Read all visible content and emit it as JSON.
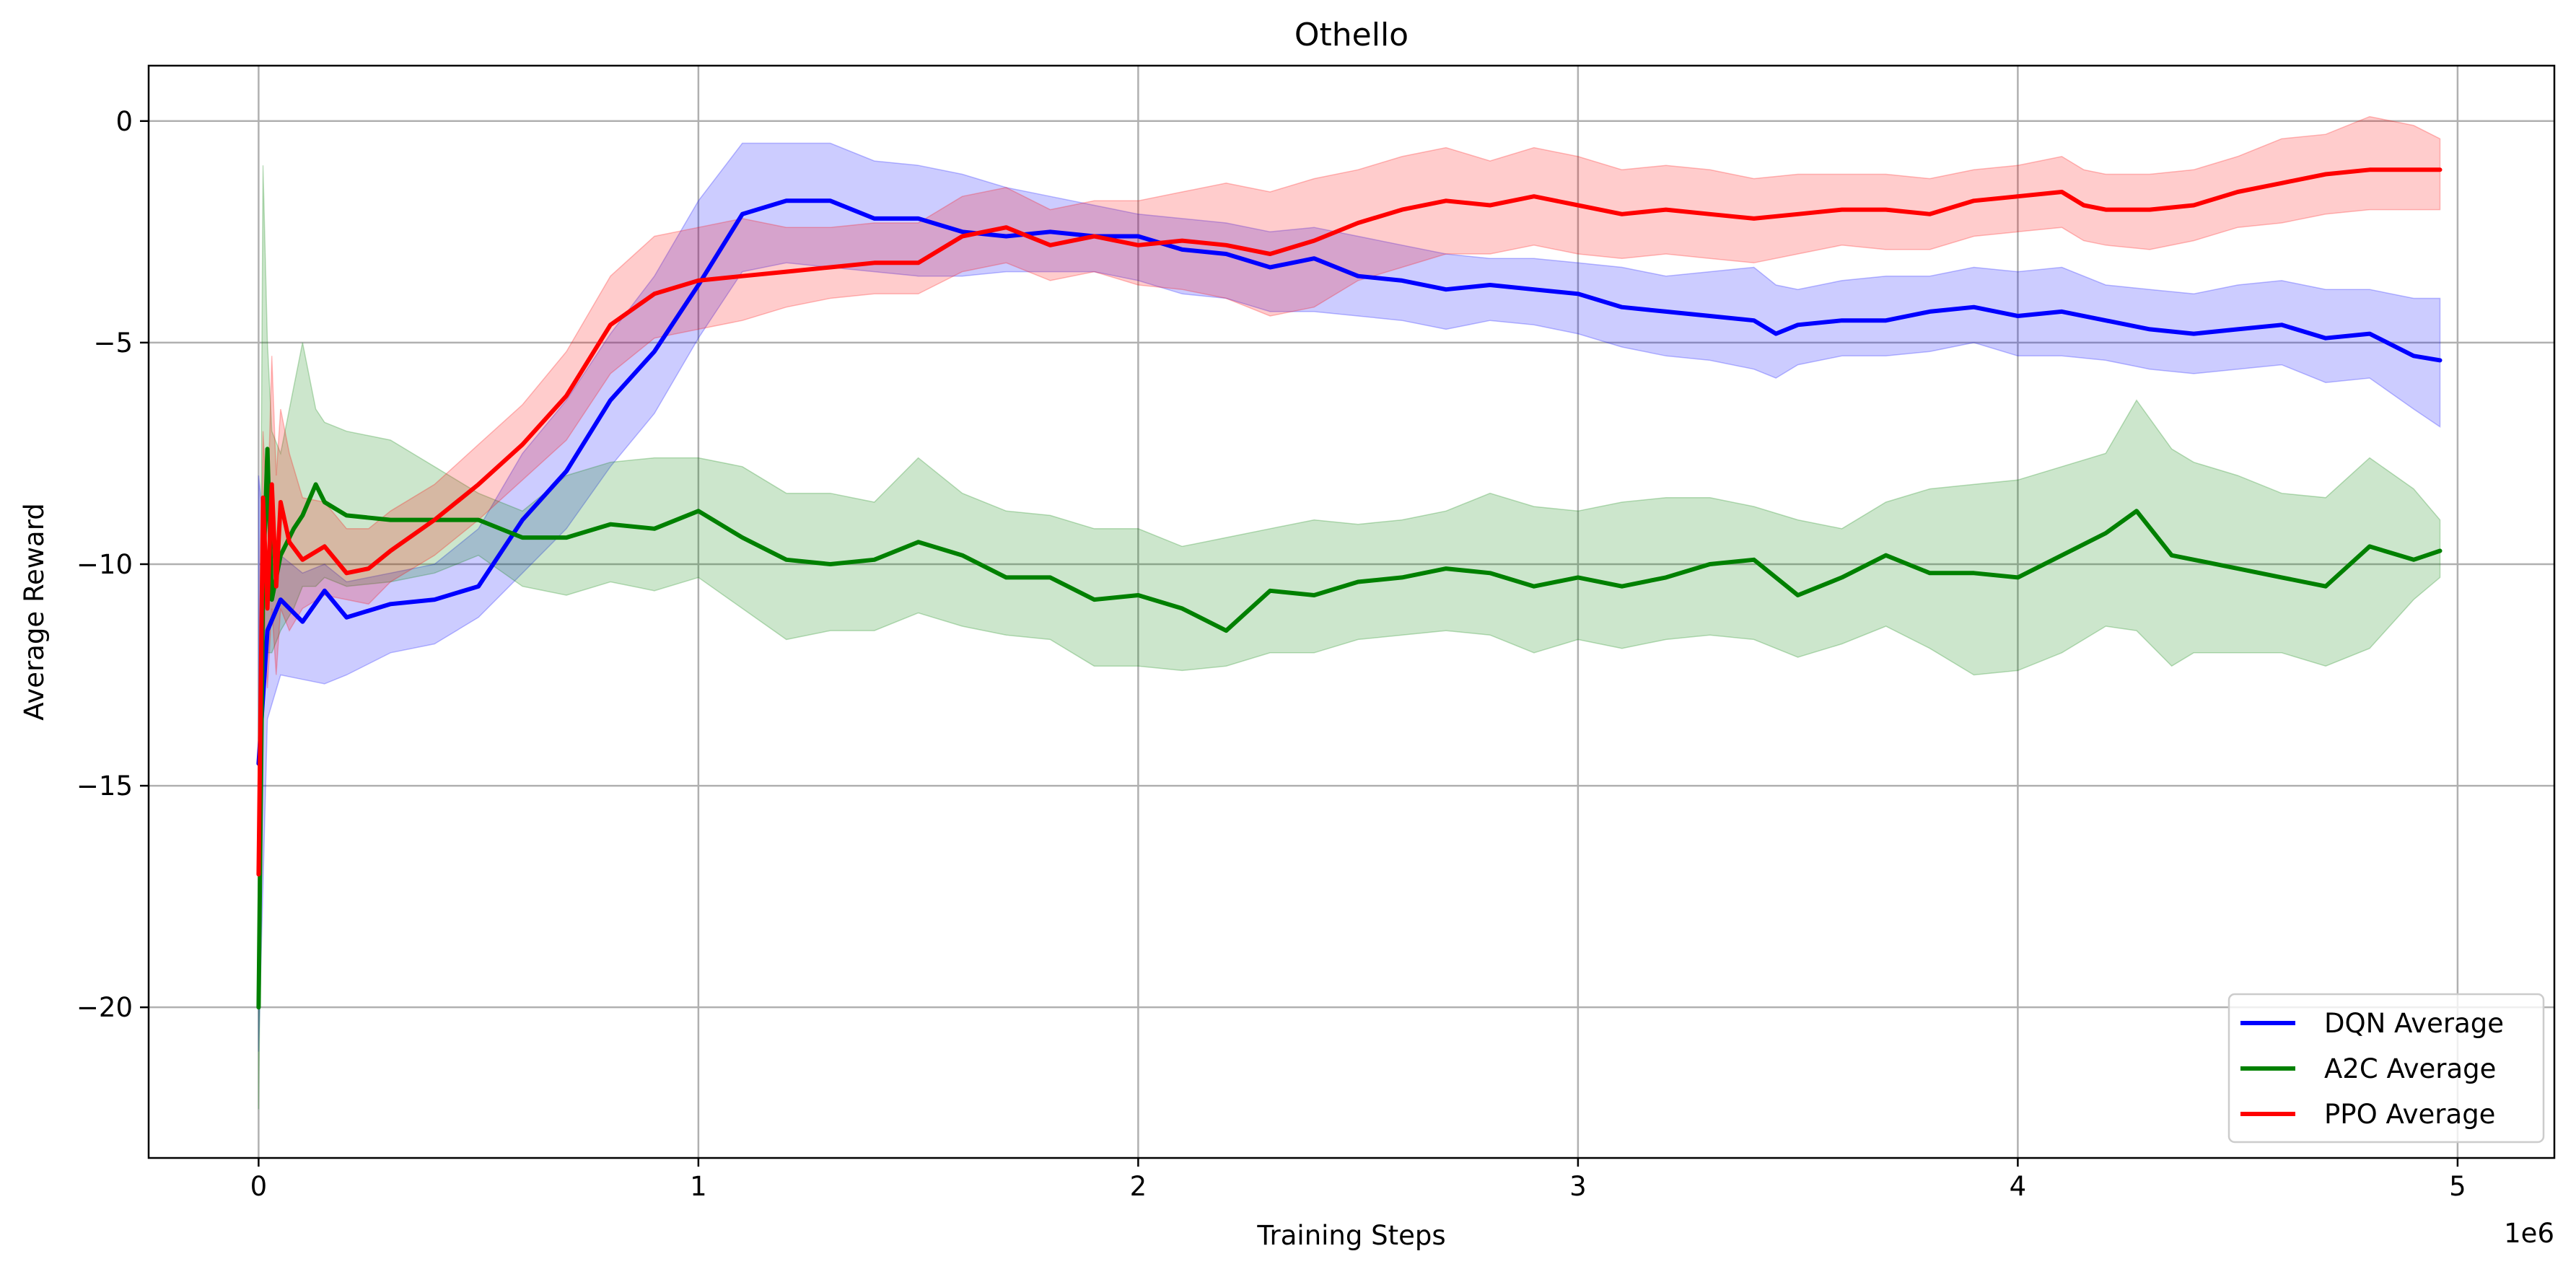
{
  "chart_data": {
    "type": "line",
    "title": "Othello",
    "xlabel": "Training Steps",
    "ylabel": "Average Reward",
    "x_offset_label": "1e6",
    "xlim": [
      -0.25,
      5.22
    ],
    "ylim": [
      -23.4,
      1.25
    ],
    "xticks": [
      0,
      1,
      2,
      3,
      4,
      5
    ],
    "xtick_labels": [
      "0",
      "1",
      "2",
      "3",
      "4",
      "5"
    ],
    "yticks": [
      0,
      -5,
      -10,
      -15,
      -20
    ],
    "ytick_labels": [
      "0",
      "−5",
      "−10",
      "−15",
      "−20"
    ],
    "grid": true,
    "legend_position": "lower-right",
    "series": [
      {
        "name": "DQN Average",
        "color": "#0000ff",
        "x": [
          0.0,
          0.02,
          0.05,
          0.1,
          0.15,
          0.2,
          0.3,
          0.4,
          0.5,
          0.6,
          0.7,
          0.8,
          0.9,
          1.0,
          1.1,
          1.2,
          1.3,
          1.4,
          1.5,
          1.6,
          1.7,
          1.8,
          1.9,
          2.0,
          2.1,
          2.2,
          2.3,
          2.4,
          2.5,
          2.6,
          2.7,
          2.8,
          2.9,
          3.0,
          3.1,
          3.2,
          3.3,
          3.4,
          3.45,
          3.5,
          3.6,
          3.7,
          3.8,
          3.9,
          4.0,
          4.1,
          4.2,
          4.3,
          4.4,
          4.5,
          4.6,
          4.7,
          4.8,
          4.9,
          4.96
        ],
        "y": [
          -14.5,
          -11.5,
          -10.8,
          -11.3,
          -10.6,
          -11.2,
          -10.9,
          -10.8,
          -10.5,
          -9.0,
          -7.9,
          -6.3,
          -5.2,
          -3.7,
          -2.1,
          -1.8,
          -1.8,
          -2.2,
          -2.2,
          -2.5,
          -2.6,
          -2.5,
          -2.6,
          -2.6,
          -2.9,
          -3.0,
          -3.3,
          -3.1,
          -3.5,
          -3.6,
          -3.8,
          -3.7,
          -3.8,
          -3.9,
          -4.2,
          -4.3,
          -4.4,
          -4.5,
          -4.8,
          -4.6,
          -4.5,
          -4.5,
          -4.3,
          -4.2,
          -4.4,
          -4.3,
          -4.5,
          -4.7,
          -4.8,
          -4.7,
          -4.6,
          -4.9,
          -4.8,
          -5.3,
          -5.4
        ],
        "band_upper": [
          -8.0,
          -10.0,
          -9.8,
          -10.2,
          -10.0,
          -10.4,
          -10.2,
          -10.0,
          -9.2,
          -7.5,
          -6.3,
          -4.8,
          -3.5,
          -1.8,
          -0.5,
          -0.5,
          -0.5,
          -0.9,
          -1.0,
          -1.2,
          -1.5,
          -1.7,
          -1.9,
          -2.1,
          -2.2,
          -2.3,
          -2.5,
          -2.4,
          -2.6,
          -2.8,
          -3.0,
          -3.1,
          -3.1,
          -3.2,
          -3.3,
          -3.5,
          -3.4,
          -3.3,
          -3.7,
          -3.8,
          -3.6,
          -3.5,
          -3.5,
          -3.3,
          -3.4,
          -3.3,
          -3.7,
          -3.8,
          -3.9,
          -3.7,
          -3.6,
          -3.8,
          -3.8,
          -4.0,
          -4.0
        ],
        "band_lower": [
          -21.0,
          -13.5,
          -12.5,
          -12.6,
          -12.7,
          -12.5,
          -12.0,
          -11.8,
          -11.2,
          -10.2,
          -9.2,
          -7.8,
          -6.6,
          -4.9,
          -3.4,
          -3.2,
          -3.3,
          -3.4,
          -3.5,
          -3.5,
          -3.4,
          -3.4,
          -3.4,
          -3.6,
          -3.9,
          -4.0,
          -4.3,
          -4.3,
          -4.4,
          -4.5,
          -4.7,
          -4.5,
          -4.6,
          -4.8,
          -5.1,
          -5.3,
          -5.4,
          -5.6,
          -5.8,
          -5.5,
          -5.3,
          -5.3,
          -5.2,
          -5.0,
          -5.3,
          -5.3,
          -5.4,
          -5.6,
          -5.7,
          -5.6,
          -5.5,
          -5.9,
          -5.8,
          -6.5,
          -6.9
        ]
      },
      {
        "name": "A2C Average",
        "color": "#008000",
        "x": [
          0.0,
          0.01,
          0.02,
          0.03,
          0.05,
          0.08,
          0.1,
          0.13,
          0.15,
          0.2,
          0.3,
          0.4,
          0.5,
          0.6,
          0.7,
          0.8,
          0.9,
          1.0,
          1.1,
          1.2,
          1.3,
          1.4,
          1.5,
          1.6,
          1.7,
          1.8,
          1.9,
          2.0,
          2.1,
          2.2,
          2.3,
          2.4,
          2.5,
          2.6,
          2.7,
          2.8,
          2.9,
          3.0,
          3.1,
          3.2,
          3.3,
          3.4,
          3.5,
          3.6,
          3.7,
          3.8,
          3.9,
          4.0,
          4.1,
          4.2,
          4.27,
          4.35,
          4.4,
          4.5,
          4.6,
          4.7,
          4.8,
          4.9,
          4.96
        ],
        "y": [
          -20.0,
          -10.5,
          -7.4,
          -10.8,
          -9.8,
          -9.2,
          -8.9,
          -8.2,
          -8.6,
          -8.9,
          -9.0,
          -9.0,
          -9.0,
          -9.4,
          -9.4,
          -9.1,
          -9.2,
          -8.8,
          -9.4,
          -9.9,
          -10.0,
          -9.9,
          -9.5,
          -9.8,
          -10.3,
          -10.3,
          -10.8,
          -10.7,
          -11.0,
          -11.5,
          -10.6,
          -10.7,
          -10.4,
          -10.3,
          -10.1,
          -10.2,
          -10.5,
          -10.3,
          -10.5,
          -10.3,
          -10.0,
          -9.9,
          -10.7,
          -10.3,
          -9.8,
          -10.2,
          -10.2,
          -10.3,
          -9.8,
          -9.3,
          -8.8,
          -9.8,
          -9.9,
          -10.1,
          -10.3,
          -10.5,
          -9.6,
          -9.9,
          -9.7
        ],
        "band_upper": [
          -17.5,
          -1.0,
          -5.0,
          -7.0,
          -7.5,
          -6.0,
          -5.0,
          -6.5,
          -6.8,
          -7.0,
          -7.2,
          -7.8,
          -8.4,
          -8.8,
          -8.0,
          -7.7,
          -7.6,
          -7.6,
          -7.8,
          -8.4,
          -8.4,
          -8.6,
          -7.6,
          -8.4,
          -8.8,
          -8.9,
          -9.2,
          -9.2,
          -9.6,
          -9.4,
          -9.2,
          -9.0,
          -9.1,
          -9.0,
          -8.8,
          -8.4,
          -8.7,
          -8.8,
          -8.6,
          -8.5,
          -8.5,
          -8.7,
          -9.0,
          -9.2,
          -8.6,
          -8.3,
          -8.2,
          -8.1,
          -7.8,
          -7.5,
          -6.3,
          -7.4,
          -7.7,
          -8.0,
          -8.4,
          -8.5,
          -7.6,
          -8.3,
          -9.0
        ],
        "band_lower": [
          -22.3,
          -13.5,
          -12.0,
          -12.0,
          -11.5,
          -11.0,
          -10.5,
          -10.5,
          -10.3,
          -10.5,
          -10.4,
          -10.2,
          -9.8,
          -10.5,
          -10.7,
          -10.4,
          -10.6,
          -10.3,
          -11.0,
          -11.7,
          -11.5,
          -11.5,
          -11.1,
          -11.4,
          -11.6,
          -11.7,
          -12.3,
          -12.3,
          -12.4,
          -12.3,
          -12.0,
          -12.0,
          -11.7,
          -11.6,
          -11.5,
          -11.6,
          -12.0,
          -11.7,
          -11.9,
          -11.7,
          -11.6,
          -11.7,
          -12.1,
          -11.8,
          -11.4,
          -11.9,
          -12.5,
          -12.4,
          -12.0,
          -11.4,
          -11.5,
          -12.3,
          -12.0,
          -12.0,
          -12.0,
          -12.3,
          -11.9,
          -10.8,
          -10.3
        ]
      },
      {
        "name": "PPO Average",
        "color": "#ff0000",
        "x": [
          0.0,
          0.01,
          0.02,
          0.03,
          0.04,
          0.05,
          0.07,
          0.1,
          0.15,
          0.2,
          0.25,
          0.3,
          0.4,
          0.5,
          0.6,
          0.7,
          0.8,
          0.9,
          1.0,
          1.1,
          1.2,
          1.3,
          1.4,
          1.5,
          1.6,
          1.7,
          1.8,
          1.9,
          2.0,
          2.1,
          2.2,
          2.3,
          2.4,
          2.5,
          2.6,
          2.7,
          2.8,
          2.9,
          3.0,
          3.1,
          3.2,
          3.3,
          3.4,
          3.5,
          3.6,
          3.7,
          3.8,
          3.9,
          4.0,
          4.1,
          4.15,
          4.2,
          4.3,
          4.4,
          4.5,
          4.6,
          4.7,
          4.8,
          4.9,
          4.96
        ],
        "y": [
          -17.0,
          -8.5,
          -11.0,
          -8.2,
          -10.5,
          -8.6,
          -9.5,
          -9.9,
          -9.6,
          -10.2,
          -10.1,
          -9.7,
          -9.0,
          -8.2,
          -7.3,
          -6.2,
          -4.6,
          -3.9,
          -3.6,
          -3.5,
          -3.4,
          -3.3,
          -3.2,
          -3.2,
          -2.6,
          -2.4,
          -2.8,
          -2.6,
          -2.8,
          -2.7,
          -2.8,
          -3.0,
          -2.7,
          -2.3,
          -2.0,
          -1.8,
          -1.9,
          -1.7,
          -1.9,
          -2.1,
          -2.0,
          -2.1,
          -2.2,
          -2.1,
          -2.0,
          -2.0,
          -2.1,
          -1.8,
          -1.7,
          -1.6,
          -1.9,
          -2.0,
          -2.0,
          -1.9,
          -1.6,
          -1.4,
          -1.2,
          -1.1,
          -1.1,
          -1.1
        ],
        "band_upper": [
          -14.5,
          -7.0,
          -9.0,
          -5.3,
          -8.0,
          -6.5,
          -7.5,
          -8.5,
          -8.6,
          -9.2,
          -9.2,
          -8.8,
          -8.2,
          -7.3,
          -6.4,
          -5.2,
          -3.5,
          -2.6,
          -2.4,
          -2.2,
          -2.4,
          -2.4,
          -2.3,
          -2.3,
          -1.7,
          -1.5,
          -2.0,
          -1.8,
          -1.8,
          -1.6,
          -1.4,
          -1.6,
          -1.3,
          -1.1,
          -0.8,
          -0.6,
          -0.9,
          -0.6,
          -0.8,
          -1.1,
          -1.0,
          -1.1,
          -1.3,
          -1.2,
          -1.2,
          -1.2,
          -1.3,
          -1.1,
          -1.0,
          -0.8,
          -1.1,
          -1.2,
          -1.2,
          -1.1,
          -0.8,
          -0.4,
          -0.3,
          0.1,
          -0.1,
          -0.4
        ],
        "band_lower": [
          -19.0,
          -10.0,
          -12.8,
          -11.0,
          -12.5,
          -11.0,
          -11.5,
          -11.0,
          -10.7,
          -10.8,
          -10.9,
          -10.4,
          -9.8,
          -9.0,
          -8.1,
          -7.2,
          -5.7,
          -4.9,
          -4.7,
          -4.5,
          -4.2,
          -4.0,
          -3.9,
          -3.9,
          -3.4,
          -3.2,
          -3.6,
          -3.4,
          -3.7,
          -3.8,
          -4.0,
          -4.4,
          -4.2,
          -3.6,
          -3.3,
          -3.0,
          -3.0,
          -2.8,
          -3.0,
          -3.1,
          -3.0,
          -3.1,
          -3.2,
          -3.0,
          -2.8,
          -2.9,
          -2.9,
          -2.6,
          -2.5,
          -2.4,
          -2.7,
          -2.8,
          -2.9,
          -2.7,
          -2.4,
          -2.3,
          -2.1,
          -2.0,
          -2.0,
          -2.0
        ]
      }
    ]
  }
}
